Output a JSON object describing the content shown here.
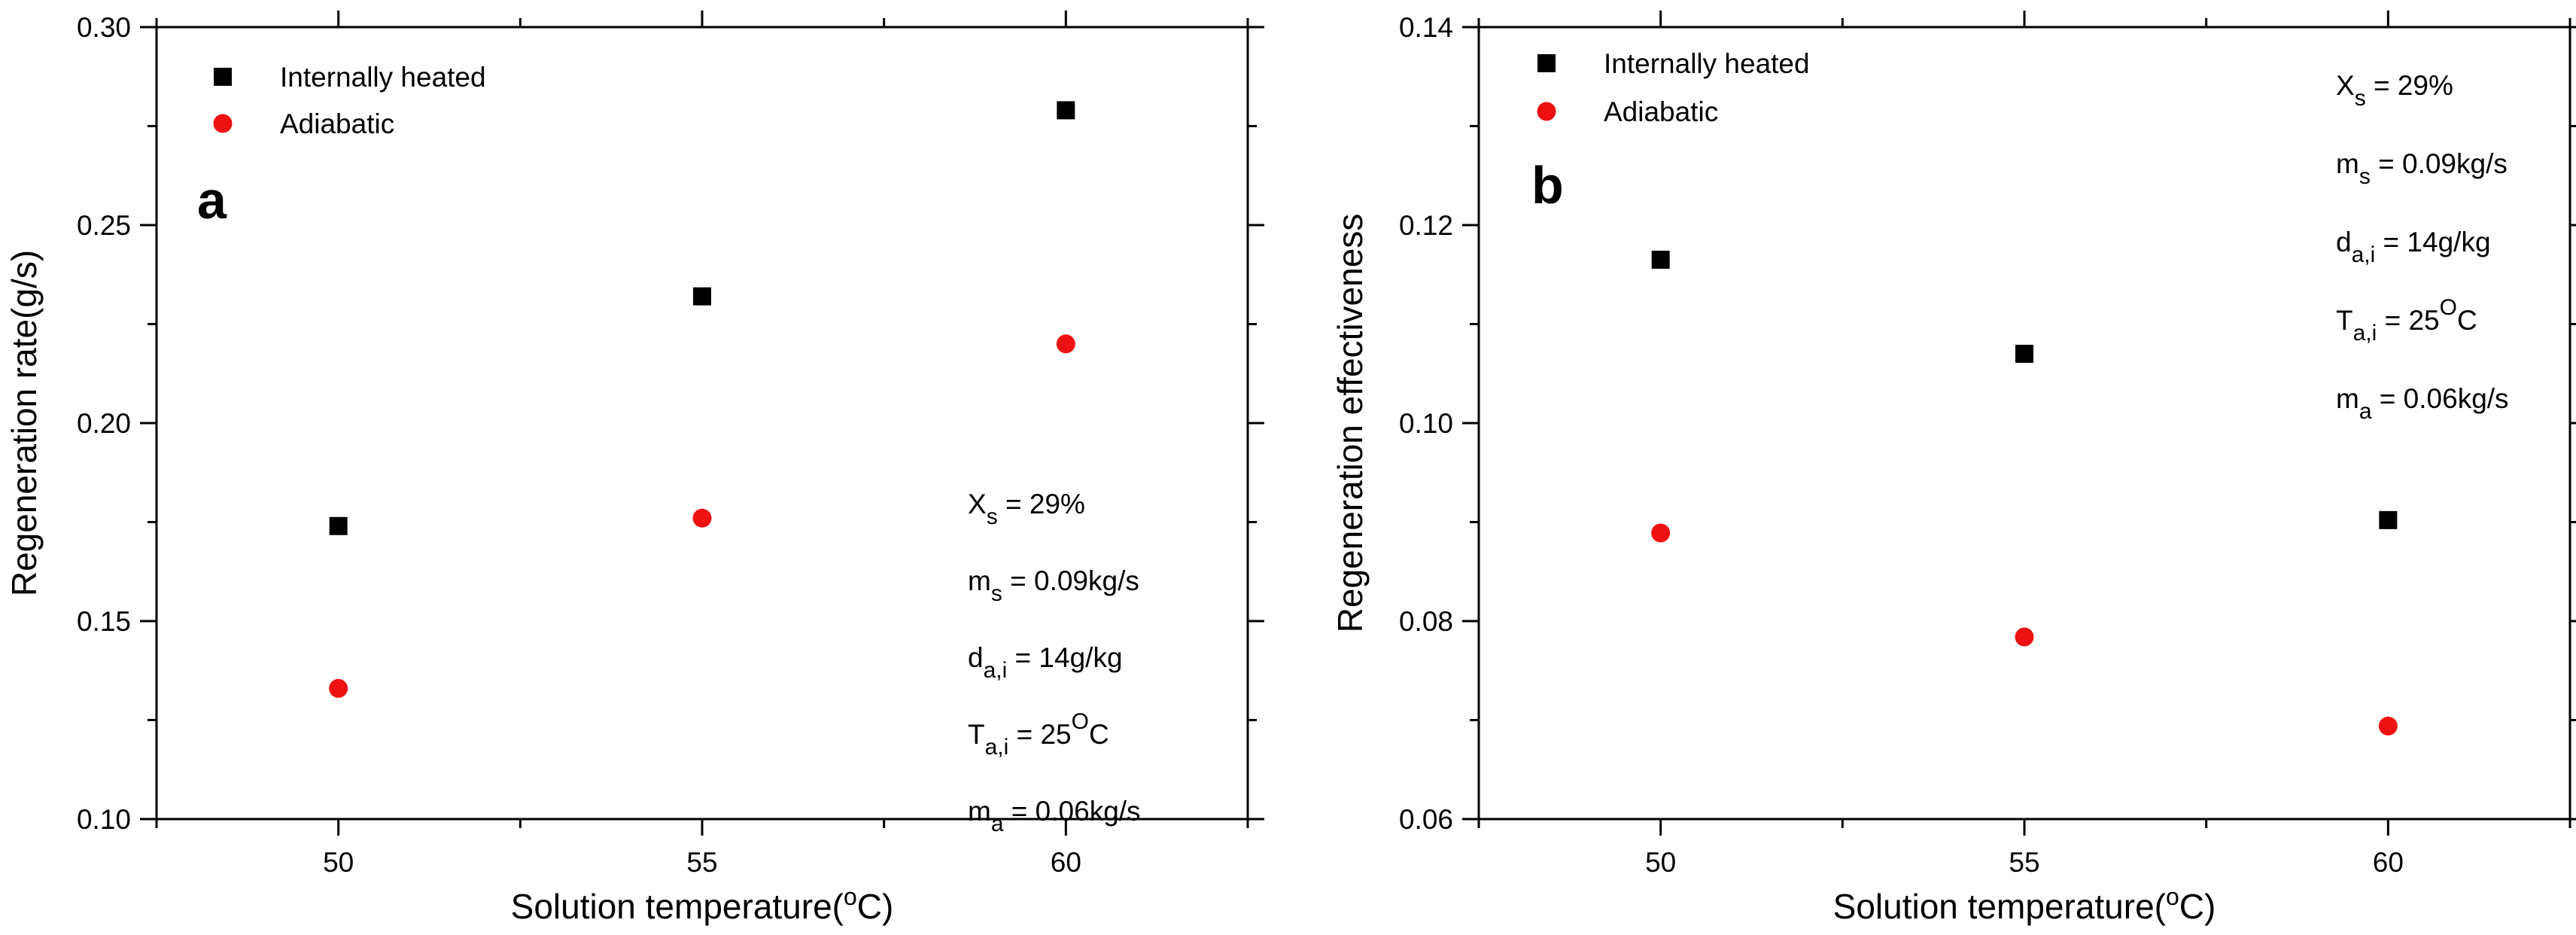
{
  "chart_data": [
    {
      "panel": "a",
      "type": "scatter",
      "xlabel": "Solution temperature",
      "xlabel_unit": "(oC)",
      "ylabel": "Regeneration rate(g/s)",
      "x_ticks": [
        50,
        55,
        60
      ],
      "y_ticks": [
        "0.10",
        "0.15",
        "0.20",
        "0.25",
        "0.30"
      ],
      "ylim": [
        0.1,
        0.3
      ],
      "xlim": [
        47.5,
        62.5
      ],
      "legend_position": "top-left",
      "series": [
        {
          "name": "Internally heated",
          "marker": "square",
          "color": "#000000",
          "x": [
            50,
            55,
            60
          ],
          "y": [
            0.174,
            0.232,
            0.279
          ]
        },
        {
          "name": "Adiabatic",
          "marker": "circle",
          "color": "#ee1111",
          "x": [
            50,
            55,
            60
          ],
          "y": [
            0.133,
            0.176,
            0.22
          ]
        }
      ],
      "annotation_position": "bottom-right",
      "annotations": [
        {
          "main": "X",
          "sub": "s",
          "sup": "",
          "rest": " = 29%"
        },
        {
          "main": "m",
          "sub": "s",
          "sup": "",
          "rest": "  = 0.09kg/s"
        },
        {
          "main": "d",
          "sub": "a,i",
          "sup": "",
          "rest": " = 14g/kg"
        },
        {
          "main": "T",
          "sub": "a,i",
          "sup": "O",
          "rest": " = 25",
          "tail": "C"
        },
        {
          "main": "m",
          "sub": "a",
          "sup": "",
          "rest": "  = 0.06kg/s"
        }
      ]
    },
    {
      "panel": "b",
      "type": "scatter",
      "xlabel": "Solution temperature",
      "xlabel_unit": "(oC)",
      "ylabel": "Regeneration effectiveness",
      "x_ticks": [
        50,
        55,
        60
      ],
      "y_ticks": [
        "0.06",
        "0.08",
        "0.10",
        "0.12",
        "0.14"
      ],
      "ylim": [
        0.06,
        0.14
      ],
      "xlim": [
        47.5,
        62.5
      ],
      "legend_position": "top-left",
      "series": [
        {
          "name": "Internally heated",
          "marker": "square",
          "color": "#000000",
          "x": [
            50,
            55,
            60
          ],
          "y": [
            0.1165,
            0.107,
            0.0902
          ]
        },
        {
          "name": "Adiabatic",
          "marker": "circle",
          "color": "#ee1111",
          "x": [
            50,
            55,
            60
          ],
          "y": [
            0.0889,
            0.0784,
            0.0694
          ]
        }
      ],
      "annotation_position": "top-right",
      "annotations": [
        {
          "main": "X",
          "sub": "s",
          "sup": "",
          "rest": " = 29%"
        },
        {
          "main": "m",
          "sub": "s",
          "sup": "",
          "rest": "  = 0.09kg/s"
        },
        {
          "main": "d",
          "sub": "a,i",
          "sup": "",
          "rest": " = 14g/kg"
        },
        {
          "main": "T",
          "sub": "a,i",
          "sup": "O",
          "rest": " = 25",
          "tail": "C"
        },
        {
          "main": "m",
          "sub": "a",
          "sup": "",
          "rest": "  = 0.06kg/s"
        }
      ]
    }
  ]
}
